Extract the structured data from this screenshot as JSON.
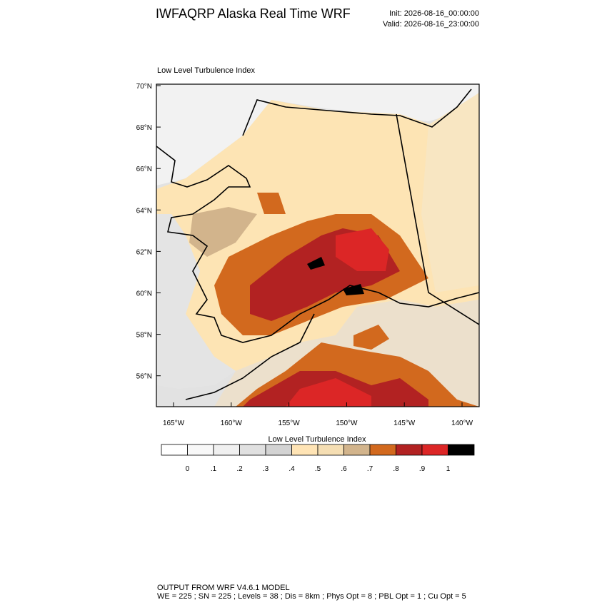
{
  "header": {
    "title": "IWFAQRP Alaska Real Time WRF",
    "init": "Init: 2026-08-16_00:00:00",
    "valid": "Valid: 2026-08-16_23:00:00"
  },
  "map": {
    "title": "Low Level Turbulence Index",
    "lat_labels": [
      "70°N",
      "68°N",
      "66°N",
      "64°N",
      "62°N",
      "60°N",
      "58°N",
      "56°N"
    ],
    "lon_labels": [
      "165°W",
      "160°W",
      "155°W",
      "150°W",
      "145°W",
      "140°W"
    ]
  },
  "colorbar": {
    "title": "Low Level Turbulence Index",
    "labels": [
      "0",
      ".1",
      ".2",
      ".3",
      ".4",
      ".5",
      ".6",
      ".7",
      ".8",
      ".9",
      "1"
    ],
    "colors": [
      "#ffffff",
      "#f8f8f8",
      "#f0f0f0",
      "#e0e0e0",
      "#d3d3d3",
      "#ffe4b5",
      "#f5deb3",
      "#d2b48c",
      "#d2691e",
      "#b22222",
      "#dc2626",
      "#000000"
    ]
  },
  "footer": {
    "line1": "OUTPUT FROM WRF V4.6.1 MODEL",
    "line2": "WE = 225 ; SN = 225 ; Levels = 38 ; Dis = 8km ; Phys Opt = 8 ; PBL Opt = 1 ; Cu Opt = 5"
  }
}
